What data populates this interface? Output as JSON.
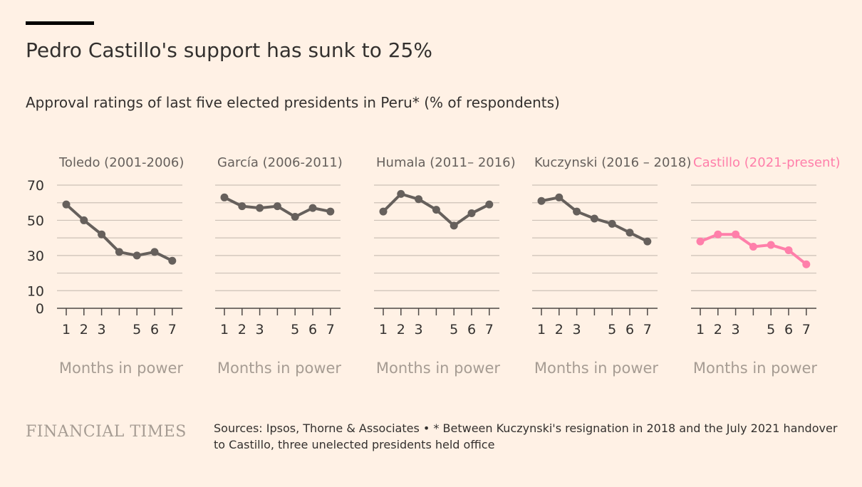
{
  "header": {
    "title": "Pedro Castillo's support has sunk to 25%",
    "subtitle": "Approval ratings of last five elected presidents in Peru* (% of respondents)"
  },
  "footer": {
    "logo": "FINANCIAL TIMES",
    "source": "Sources: Ipsos, Thorne & Associates • * Between Kuczynski's resignation in 2018 and the July 2021 handover to Castillo, three unelected presidents held office"
  },
  "colors": {
    "background": "#fff1e5",
    "line_default": "#66605c",
    "line_highlight": "#ff7faa",
    "grid": "#ccc1b7",
    "axis_label": "#a69c93"
  },
  "chart_data": {
    "type": "line",
    "title": "Pedro Castillo's support has sunk to 25%",
    "ylabel": "",
    "xlabel": "Months in power",
    "ylim": [
      0,
      70
    ],
    "y_ticks": [
      70,
      50,
      30,
      10,
      0
    ],
    "x_ticks": [
      1,
      2,
      3,
      5,
      6,
      7
    ],
    "grid": true,
    "panels": [
      {
        "name": "Toledo (2001-2006)",
        "xlabel": "Months in power",
        "highlight": false,
        "x": [
          1,
          2,
          3,
          4,
          5,
          6,
          7
        ],
        "values": [
          59,
          50,
          42,
          32,
          30,
          32,
          27
        ]
      },
      {
        "name": "García (2006-2011)",
        "xlabel": "Months in power",
        "highlight": false,
        "x": [
          1,
          2,
          3,
          4,
          5,
          6,
          7
        ],
        "values": [
          63,
          58,
          57,
          58,
          52,
          57,
          55
        ]
      },
      {
        "name": "Humala (2011– 2016)",
        "xlabel": "Months in power",
        "highlight": false,
        "x": [
          1,
          2,
          3,
          4,
          5,
          6,
          7
        ],
        "values": [
          55,
          65,
          62,
          56,
          47,
          54,
          59
        ]
      },
      {
        "name": "Kuczynski (2016 – 2018)",
        "xlabel": "Months in power",
        "highlight": false,
        "x": [
          1,
          2,
          3,
          4,
          5,
          6,
          7
        ],
        "values": [
          61,
          63,
          55,
          51,
          48,
          43,
          38
        ]
      },
      {
        "name": "Castillo (2021-present)",
        "xlabel": "Months in power",
        "highlight": true,
        "x": [
          1,
          2,
          3,
          4,
          5,
          6,
          7
        ],
        "values": [
          38,
          42,
          42,
          35,
          36,
          33,
          25
        ]
      }
    ]
  }
}
